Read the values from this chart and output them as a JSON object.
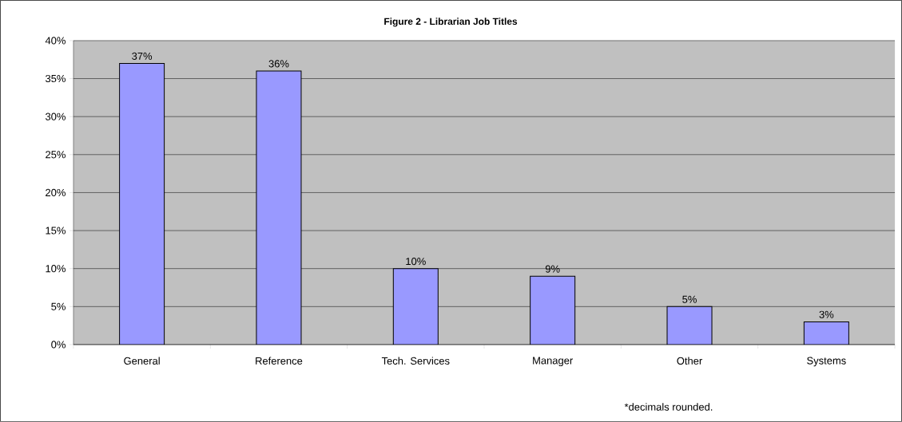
{
  "chart_data": {
    "type": "bar",
    "title": "Figure 2 - Librarian Job Titles",
    "categories": [
      "General",
      "Reference",
      "Tech. Services",
      "Manager",
      "Other",
      "Systems"
    ],
    "values": [
      37,
      36,
      10,
      9,
      5,
      3
    ],
    "value_labels": [
      "37%",
      "36%",
      "10%",
      "9%",
      "5%",
      "3%"
    ],
    "color": "#9999ff",
    "ylim": [
      0,
      40
    ],
    "yticks": [
      {
        "value": 0,
        "label": "0%"
      },
      {
        "value": 5,
        "label": "5%"
      },
      {
        "value": 10,
        "label": "10%"
      },
      {
        "value": 15,
        "label": "15%"
      },
      {
        "value": 20,
        "label": "20%"
      },
      {
        "value": 25,
        "label": "25%"
      },
      {
        "value": 30,
        "label": "30%"
      },
      {
        "value": 35,
        "label": "35%"
      },
      {
        "value": 40,
        "label": "40%"
      }
    ],
    "grid": "y",
    "annotations": [
      "*decimals rounded."
    ]
  }
}
